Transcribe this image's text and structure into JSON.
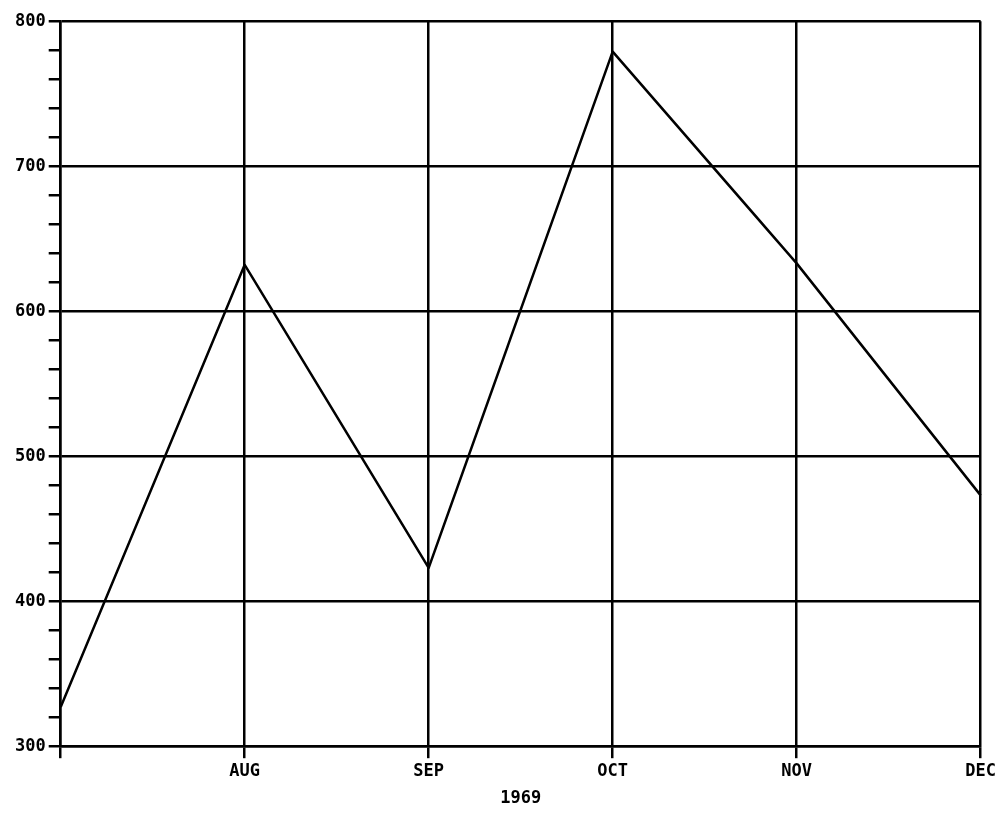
{
  "chart_data": {
    "type": "line",
    "xlabel": "1969",
    "categories": [
      null,
      "AUG",
      "SEP",
      "OCT",
      "NOV",
      "DEC"
    ],
    "series": [
      {
        "color": "#000000",
        "values": [
          327,
          632,
          423,
          779,
          633,
          473
        ]
      }
    ],
    "ylim": [
      300,
      800
    ],
    "yticks": [
      300,
      {
        "value": 320,
        "label": null
      },
      {
        "value": 340,
        "label": null
      },
      {
        "value": 360,
        "label": null
      },
      {
        "value": 380,
        "label": null
      },
      400,
      {
        "value": 420,
        "label": null
      },
      {
        "value": 440,
        "label": null
      },
      {
        "value": 460,
        "label": null
      },
      {
        "value": 480,
        "label": null
      },
      500,
      {
        "value": 520,
        "label": null
      },
      {
        "value": 540,
        "label": null
      },
      {
        "value": 560,
        "label": null
      },
      {
        "value": 580,
        "label": null
      },
      600,
      {
        "value": 620,
        "label": null
      },
      {
        "value": 640,
        "label": null
      },
      {
        "value": 660,
        "label": null
      },
      {
        "value": 680,
        "label": null
      },
      700,
      {
        "value": 720,
        "label": null
      },
      {
        "value": 740,
        "label": null
      },
      {
        "value": 760,
        "label": null
      },
      {
        "value": 780,
        "label": null
      },
      800
    ],
    "grid": true,
    "legend": false,
    "marker": "none",
    "line_style": "solid"
  }
}
